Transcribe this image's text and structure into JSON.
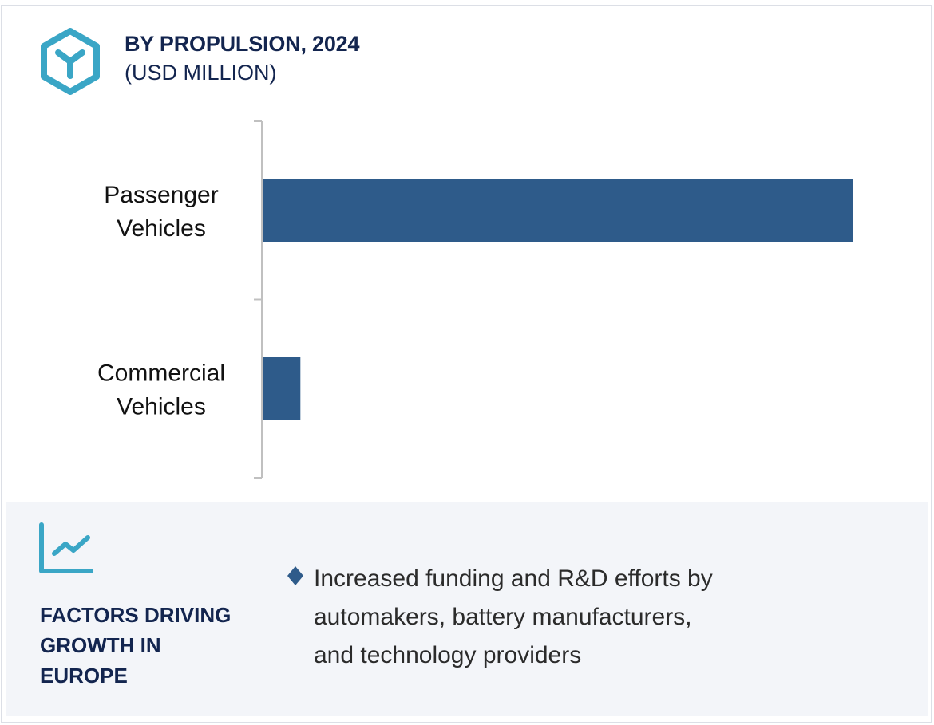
{
  "header": {
    "icon": "hexagon-y-icon",
    "title": "BY PROPULSION, 2024",
    "subtitle": "(USD MILLION)"
  },
  "colors": {
    "bar": "#2e5b8a",
    "title": "#13254f",
    "icon_accent": "#3aa6c6",
    "panel_bg": "#f3f5f9",
    "axis": "#c0c0c0"
  },
  "chart_data": {
    "type": "bar",
    "orientation": "horizontal",
    "title": "BY PROPULSION, 2024",
    "subtitle": "(USD MILLION)",
    "categories": [
      "Passenger Vehicles",
      "Commercial Vehicles"
    ],
    "category_lines": [
      [
        "Passenger",
        "Vehicles"
      ],
      [
        "Commercial",
        "Vehicles"
      ]
    ],
    "values": [
      1.0,
      0.064
    ],
    "value_note": "relative values (no axis scale shown); Passenger Vehicles normalized to 1.0",
    "xlabel": "",
    "ylabel": "",
    "xlim": [
      0,
      1.0
    ],
    "grid": false,
    "legend": "none"
  },
  "factors": {
    "icon": "trend-chart-icon",
    "title_lines": [
      "FACTORS DRIVING",
      "GROWTH IN",
      "EUROPE"
    ],
    "bullet_icon": "diamond-bullet-icon",
    "bullets": [
      {
        "lines": [
          "Increased funding and R&D efforts by",
          "automakers, battery manufacturers,",
          "and technology providers"
        ]
      }
    ]
  }
}
